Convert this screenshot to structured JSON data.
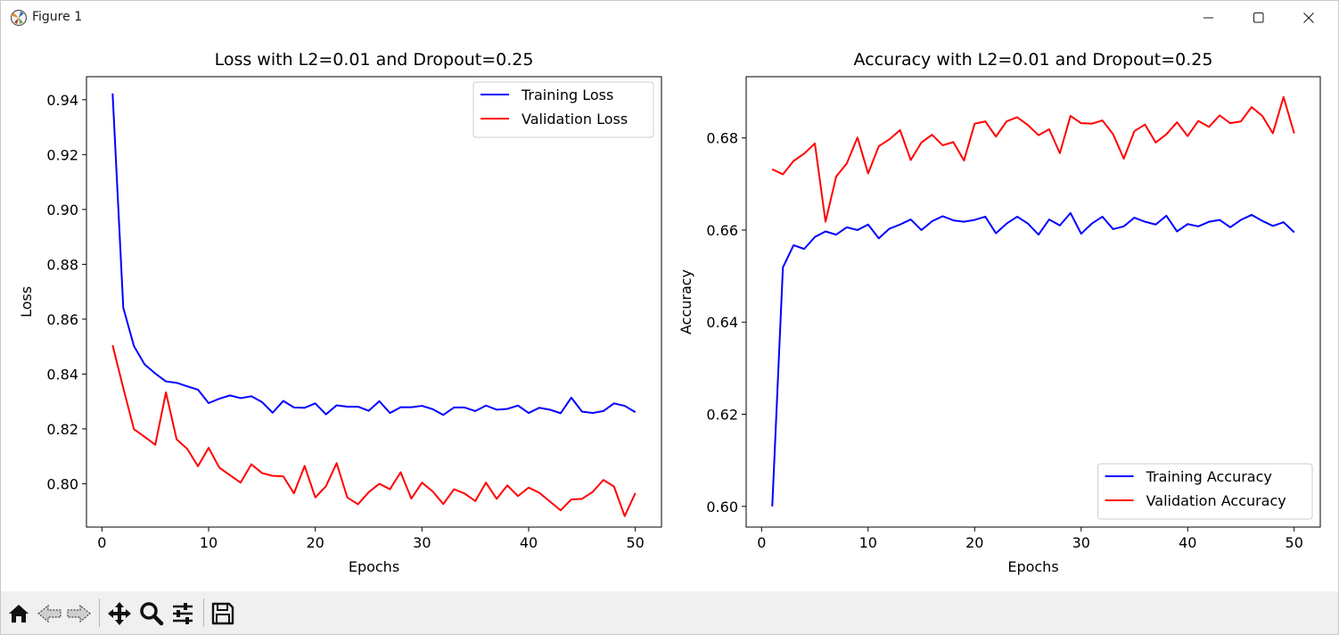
{
  "window": {
    "title": "Figure 1"
  },
  "toolbar": {
    "buttons": [
      {
        "name": "home-icon"
      },
      {
        "name": "back-icon"
      },
      {
        "name": "forward-icon"
      },
      {
        "name": "pan-icon"
      },
      {
        "name": "zoom-icon"
      },
      {
        "name": "configure-subplots-icon"
      },
      {
        "name": "save-icon"
      }
    ]
  },
  "colors": {
    "training": "#0000ff",
    "validation": "#ff0000"
  },
  "chart_data": [
    {
      "type": "line",
      "title": "Loss with L2=0.01 and Dropout=0.25",
      "xlabel": "Epochs",
      "ylabel": "Loss",
      "xlim": [
        -1.45,
        52.45
      ],
      "ylim": [
        0.7842,
        0.9484
      ],
      "xticks": [
        0,
        10,
        20,
        30,
        40,
        50
      ],
      "yticks": [
        0.8,
        0.82,
        0.84,
        0.86,
        0.88,
        0.9,
        0.92,
        0.94
      ],
      "ytick_labels": [
        "0.80",
        "0.82",
        "0.84",
        "0.86",
        "0.88",
        "0.90",
        "0.92",
        "0.94"
      ],
      "grid": false,
      "legend_position": "upper-right",
      "series": [
        {
          "name": "Training Loss",
          "color": "#0000ff",
          "x": [
            1,
            2,
            3,
            4,
            5,
            6,
            7,
            8,
            9,
            10,
            11,
            12,
            13,
            14,
            15,
            16,
            17,
            18,
            19,
            20,
            21,
            22,
            23,
            24,
            25,
            26,
            27,
            28,
            29,
            30,
            31,
            32,
            33,
            34,
            35,
            36,
            37,
            38,
            39,
            40,
            41,
            42,
            43,
            44,
            45,
            46,
            47,
            48,
            49,
            50
          ],
          "values": [
            0.9423,
            0.8642,
            0.8502,
            0.8435,
            0.8402,
            0.8373,
            0.8368,
            0.8355,
            0.8343,
            0.8294,
            0.831,
            0.8322,
            0.8312,
            0.8319,
            0.8298,
            0.8259,
            0.8302,
            0.8278,
            0.8277,
            0.8293,
            0.8253,
            0.8286,
            0.8281,
            0.8281,
            0.8266,
            0.8301,
            0.8258,
            0.8279,
            0.8279,
            0.8284,
            0.8272,
            0.8251,
            0.8278,
            0.8278,
            0.8265,
            0.8285,
            0.827,
            0.8273,
            0.8285,
            0.8258,
            0.8277,
            0.827,
            0.8257,
            0.8314,
            0.8263,
            0.8258,
            0.8265,
            0.8293,
            0.8284,
            0.8261
          ]
        },
        {
          "name": "Validation Loss",
          "color": "#ff0000",
          "x": [
            1,
            2,
            3,
            4,
            5,
            6,
            7,
            8,
            9,
            10,
            11,
            12,
            13,
            14,
            15,
            16,
            17,
            18,
            19,
            20,
            21,
            22,
            23,
            24,
            25,
            26,
            27,
            28,
            29,
            30,
            31,
            32,
            33,
            34,
            35,
            36,
            37,
            38,
            39,
            40,
            41,
            42,
            43,
            44,
            45,
            46,
            47,
            48,
            49,
            50
          ],
          "values": [
            0.8505,
            0.8349,
            0.8199,
            0.8171,
            0.8142,
            0.8333,
            0.8162,
            0.8127,
            0.8064,
            0.8131,
            0.8059,
            0.8031,
            0.8004,
            0.8071,
            0.8039,
            0.8029,
            0.8027,
            0.7965,
            0.8065,
            0.795,
            0.7991,
            0.8075,
            0.795,
            0.7925,
            0.7969,
            0.8,
            0.798,
            0.8042,
            0.7946,
            0.8004,
            0.7972,
            0.7926,
            0.798,
            0.7964,
            0.7937,
            0.8004,
            0.7945,
            0.7994,
            0.7955,
            0.7986,
            0.7967,
            0.7935,
            0.7903,
            0.7943,
            0.7945,
            0.797,
            0.8014,
            0.799,
            0.7882,
            0.7966
          ]
        }
      ]
    },
    {
      "type": "line",
      "title": "Accuracy with L2=0.01 and Dropout=0.25",
      "xlabel": "Epochs",
      "ylabel": "Accuracy",
      "xlim": [
        -1.45,
        52.45
      ],
      "ylim": [
        0.5955,
        0.6933
      ],
      "xticks": [
        0,
        10,
        20,
        30,
        40,
        50
      ],
      "yticks": [
        0.6,
        0.62,
        0.64,
        0.66,
        0.68
      ],
      "ytick_labels": [
        "0.60",
        "0.62",
        "0.64",
        "0.66",
        "0.68"
      ],
      "grid": false,
      "legend_position": "lower-right",
      "series": [
        {
          "name": "Training Accuracy",
          "color": "#0000ff",
          "x": [
            1,
            2,
            3,
            4,
            5,
            6,
            7,
            8,
            9,
            10,
            11,
            12,
            13,
            14,
            15,
            16,
            17,
            18,
            19,
            20,
            21,
            22,
            23,
            24,
            25,
            26,
            27,
            28,
            29,
            30,
            31,
            32,
            33,
            34,
            35,
            36,
            37,
            38,
            39,
            40,
            41,
            42,
            43,
            44,
            45,
            46,
            47,
            48,
            49,
            50
          ],
          "values": [
            0.6,
            0.6519,
            0.6567,
            0.6559,
            0.6585,
            0.6597,
            0.659,
            0.6606,
            0.66,
            0.6612,
            0.6582,
            0.6603,
            0.6612,
            0.6623,
            0.66,
            0.6619,
            0.663,
            0.6621,
            0.6618,
            0.6622,
            0.6629,
            0.6593,
            0.6614,
            0.6629,
            0.6614,
            0.659,
            0.6623,
            0.661,
            0.6637,
            0.6592,
            0.6614,
            0.6629,
            0.6602,
            0.6608,
            0.6627,
            0.6618,
            0.6612,
            0.6631,
            0.6597,
            0.6613,
            0.6608,
            0.6618,
            0.6622,
            0.6606,
            0.6622,
            0.6633,
            0.662,
            0.6609,
            0.6617,
            0.6595
          ]
        },
        {
          "name": "Validation Accuracy",
          "color": "#ff0000",
          "x": [
            1,
            2,
            3,
            4,
            5,
            6,
            7,
            8,
            9,
            10,
            11,
            12,
            13,
            14,
            15,
            16,
            17,
            18,
            19,
            20,
            21,
            22,
            23,
            24,
            25,
            26,
            27,
            28,
            29,
            30,
            31,
            32,
            33,
            34,
            35,
            36,
            37,
            38,
            39,
            40,
            41,
            42,
            43,
            44,
            45,
            46,
            47,
            48,
            49,
            50
          ],
          "values": [
            0.6732,
            0.6721,
            0.675,
            0.6766,
            0.6788,
            0.6618,
            0.6716,
            0.6745,
            0.6801,
            0.6723,
            0.6782,
            0.6797,
            0.6817,
            0.6752,
            0.679,
            0.6807,
            0.6784,
            0.6791,
            0.6751,
            0.6831,
            0.6836,
            0.6803,
            0.6836,
            0.6845,
            0.6828,
            0.6806,
            0.6819,
            0.6767,
            0.6848,
            0.6832,
            0.6831,
            0.6838,
            0.6808,
            0.6755,
            0.6815,
            0.6829,
            0.679,
            0.6808,
            0.6834,
            0.6804,
            0.6837,
            0.6824,
            0.6849,
            0.6832,
            0.6836,
            0.6867,
            0.6848,
            0.681,
            0.6889,
            0.681
          ]
        }
      ]
    }
  ]
}
